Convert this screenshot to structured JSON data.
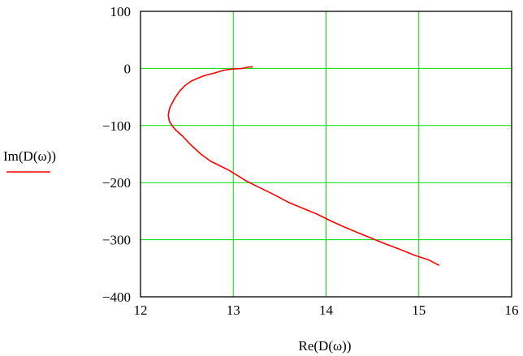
{
  "chart_data": {
    "type": "line",
    "xlabel": "Re(D(ω))",
    "ylabel": "Im(D(ω))",
    "xlim": [
      12,
      16
    ],
    "ylim": [
      -400,
      100
    ],
    "x_ticks": [
      12,
      13,
      14,
      15,
      16
    ],
    "y_ticks": [
      100,
      0,
      -100,
      -200,
      -300,
      -400
    ],
    "x_tick_labels": [
      "12",
      "13",
      "14",
      "15",
      "16"
    ],
    "y_tick_labels": [
      "100",
      "0",
      "−100",
      "−200",
      "−300",
      "−400"
    ],
    "grid": true,
    "colors": {
      "grid": "#00dd00",
      "series": "#ff0000",
      "frame": "#000000"
    },
    "series": [
      {
        "name": "Im(D(ω))",
        "x": [
          13.21,
          13.2,
          13.15,
          13.1,
          13.0,
          12.9,
          12.8,
          12.7,
          12.62,
          12.55,
          12.48,
          12.42,
          12.37,
          12.33,
          12.31,
          12.3,
          12.31,
          12.34,
          12.38,
          12.45,
          12.55,
          12.65,
          12.75,
          12.85,
          12.95,
          13.05,
          13.15,
          13.3,
          13.45,
          13.6,
          13.75,
          13.9,
          14.05,
          14.2,
          14.35,
          14.5,
          14.65,
          14.8,
          14.95,
          15.1,
          15.22
        ],
        "y": [
          2,
          3,
          2,
          0,
          -1,
          -3,
          -8,
          -12,
          -17,
          -22,
          -30,
          -40,
          -52,
          -64,
          -72,
          -82,
          -92,
          -100,
          -108,
          -118,
          -135,
          -150,
          -162,
          -170,
          -178,
          -188,
          -198,
          -210,
          -222,
          -235,
          -245,
          -255,
          -267,
          -278,
          -288,
          -298,
          -308,
          -317,
          -327,
          -335,
          -345
        ]
      }
    ]
  }
}
